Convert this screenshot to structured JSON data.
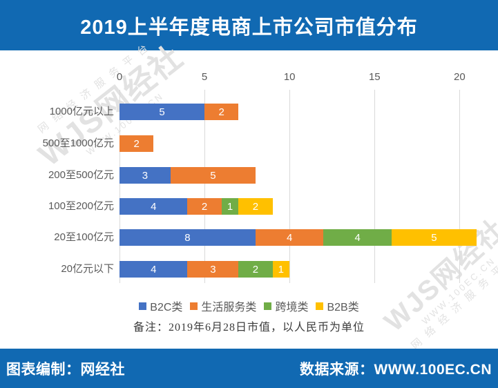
{
  "header": {
    "title": "2019上半年度电商上市公司市值分布",
    "bg_color": "#1169B2",
    "text_color": "#FFFFFF"
  },
  "footer": {
    "left": "图表编制：网经社",
    "right": "数据来源：WWW.100EC.CN",
    "bg_color": "#1169B2",
    "text_color": "#FFFFFF"
  },
  "watermark": {
    "brand": "WJS网经社",
    "url": "WWW.100EC.CN",
    "slogan": "网络经济服务平台"
  },
  "chart_data": {
    "type": "bar",
    "orientation": "horizontal-stacked",
    "title": "2019上半年度电商上市公司市值分布",
    "categories": [
      "1000亿元以上",
      "500至1000亿元",
      "200至500亿元",
      "100至200亿元",
      "20至100亿元",
      "20亿元以下"
    ],
    "series": [
      {
        "name": "B2C类",
        "color": "#4472C4",
        "values": [
          5,
          0,
          3,
          4,
          8,
          4
        ]
      },
      {
        "name": "生活服务类",
        "color": "#ED7D31",
        "values": [
          2,
          2,
          5,
          2,
          4,
          3
        ]
      },
      {
        "name": "跨境类",
        "color": "#70AD47",
        "values": [
          0,
          0,
          0,
          1,
          4,
          2
        ]
      },
      {
        "name": "B2B类",
        "color": "#FFC000",
        "values": [
          0,
          0,
          0,
          2,
          5,
          1
        ]
      }
    ],
    "x_ticks": [
      0,
      5,
      10,
      15,
      20
    ],
    "xlim": [
      0,
      21
    ],
    "axis_position": "top",
    "grid": true,
    "grid_color": "#D9D9D9",
    "tick_color": "#595959",
    "legend_position": "bottom",
    "note": "备注：2019年6月28日市值，以人民币为单位"
  }
}
